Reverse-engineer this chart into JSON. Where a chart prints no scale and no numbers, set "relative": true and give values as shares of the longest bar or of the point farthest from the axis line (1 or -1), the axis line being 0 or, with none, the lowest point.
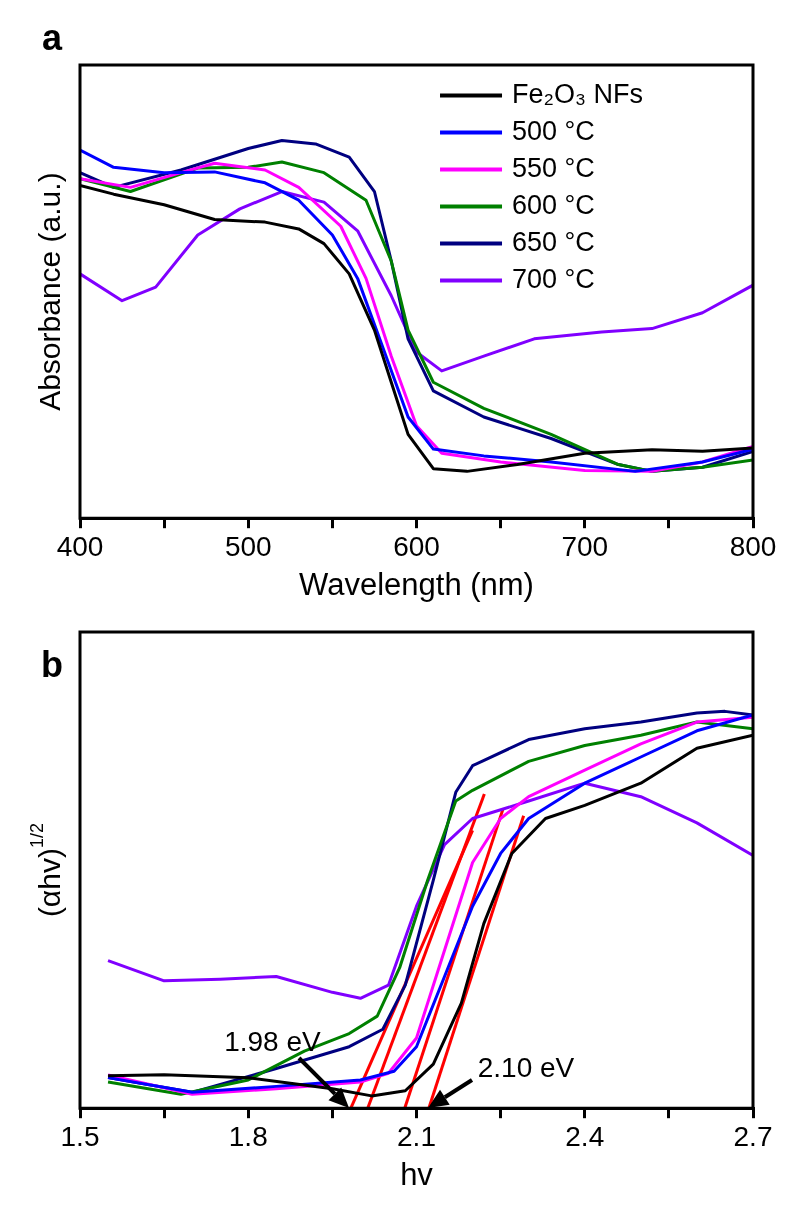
{
  "chart_data": [
    {
      "type": "line",
      "title": "a",
      "xlabel": "Wavelength (nm)",
      "ylabel": "Absorbance (a.u.)",
      "relative": true,
      "xlim": [
        400,
        800
      ],
      "xticks": [
        400,
        {
          "value": 450,
          "label": null
        },
        500,
        {
          "value": 550,
          "label": null
        },
        600,
        {
          "value": 650,
          "label": null
        },
        700,
        {
          "value": 750,
          "label": null
        },
        800
      ],
      "tick_labels": "x",
      "grid": false,
      "legend": "top right",
      "series": [
        {
          "name": "Fe₂O₃ NFs",
          "color": "#000000",
          "x": [
            400,
            420,
            450,
            480,
            510,
            530,
            545,
            560,
            575,
            585,
            595,
            610,
            630,
            660,
            700,
            740,
            770,
            800
          ],
          "values": [
            0.881,
            0.858,
            0.83,
            0.791,
            0.784,
            0.766,
            0.727,
            0.647,
            0.498,
            0.36,
            0.222,
            0.131,
            0.124,
            0.142,
            0.172,
            0.181,
            0.177,
            0.186
          ]
        },
        {
          "name": "500 °C",
          "color": "#0000ff",
          "x": [
            400,
            420,
            450,
            480,
            510,
            530,
            550,
            565,
            580,
            595,
            610,
            640,
            680,
            730,
            770,
            800
          ],
          "values": [
            0.975,
            0.929,
            0.915,
            0.917,
            0.888,
            0.842,
            0.75,
            0.635,
            0.452,
            0.268,
            0.183,
            0.165,
            0.149,
            0.124,
            0.149,
            0.183
          ]
        },
        {
          "name": "550 °C",
          "color": "#ff00ff",
          "x": [
            400,
            430,
            460,
            480,
            510,
            530,
            555,
            570,
            585,
            600,
            615,
            650,
            700,
            740,
            770,
            800
          ],
          "values": [
            0.899,
            0.876,
            0.915,
            0.94,
            0.922,
            0.876,
            0.773,
            0.635,
            0.429,
            0.245,
            0.172,
            0.149,
            0.126,
            0.124,
            0.149,
            0.19
          ]
        },
        {
          "name": "600 °C",
          "color": "#008000",
          "x": [
            400,
            430,
            470,
            500,
            520,
            545,
            570,
            585,
            595,
            610,
            640,
            680,
            720,
            740,
            770,
            800
          ],
          "values": [
            0.899,
            0.865,
            0.927,
            0.929,
            0.943,
            0.915,
            0.842,
            0.681,
            0.498,
            0.36,
            0.291,
            0.222,
            0.142,
            0.124,
            0.135,
            0.154
          ]
        },
        {
          "name": "650 °C",
          "color": "#000080",
          "x": [
            400,
            420,
            460,
            500,
            520,
            540,
            560,
            575,
            585,
            595,
            610,
            640,
            680,
            720,
            740,
            770,
            800
          ],
          "values": [
            0.915,
            0.876,
            0.922,
            0.979,
            1.0,
            0.991,
            0.956,
            0.865,
            0.681,
            0.475,
            0.337,
            0.268,
            0.211,
            0.142,
            0.124,
            0.135,
            0.177
          ]
        },
        {
          "name": "700 °C",
          "color": "#8000ff",
          "x": [
            400,
            425,
            445,
            470,
            495,
            520,
            545,
            565,
            585,
            600,
            615,
            640,
            670,
            710,
            740,
            770,
            800
          ],
          "values": [
            0.647,
            0.576,
            0.612,
            0.75,
            0.819,
            0.865,
            0.837,
            0.761,
            0.589,
            0.44,
            0.39,
            0.429,
            0.475,
            0.493,
            0.502,
            0.544,
            0.617
          ]
        }
      ]
    },
    {
      "type": "line",
      "title": "b",
      "xlabel": "hv",
      "ylabel": "(αhv)$^{1/2}$",
      "relative": true,
      "xlim": [
        1.5,
        2.7
      ],
      "xticks": [
        1.5,
        {
          "value": 1.65,
          "label": null
        },
        1.8,
        {
          "value": 1.95,
          "label": null
        },
        2.1,
        {
          "value": 2.25,
          "label": null
        },
        2.4,
        {
          "value": 2.55,
          "label": null
        },
        2.7
      ],
      "tick_labels": "x",
      "grid": false,
      "annotations": [
        {
          "text": "1.98 eV",
          "x": 1.98,
          "y": 0
        },
        {
          "text": "2.10 eV",
          "x": 2.12,
          "y": 0
        }
      ],
      "series": [
        {
          "color": "#000000",
          "x": [
            1.55,
            1.65,
            1.8,
            1.95,
            2.02,
            2.08,
            2.13,
            2.18,
            2.22,
            2.27,
            2.33,
            2.4,
            2.5,
            2.6,
            2.7
          ],
          "values": [
            0.082,
            0.084,
            0.077,
            0.049,
            0.031,
            0.044,
            0.111,
            0.265,
            0.465,
            0.642,
            0.73,
            0.763,
            0.819,
            0.907,
            0.94
          ]
        },
        {
          "color": "#0000ff",
          "x": [
            1.55,
            1.7,
            1.85,
            2.0,
            2.06,
            2.1,
            2.15,
            2.2,
            2.25,
            2.3,
            2.4,
            2.5,
            2.6,
            2.7
          ],
          "values": [
            0.077,
            0.04,
            0.055,
            0.071,
            0.093,
            0.155,
            0.332,
            0.509,
            0.642,
            0.73,
            0.819,
            0.885,
            0.951,
            0.991
          ]
        },
        {
          "color": "#ff00ff",
          "x": [
            1.55,
            1.7,
            1.85,
            2.0,
            2.05,
            2.1,
            2.15,
            2.2,
            2.25,
            2.3,
            2.4,
            2.5,
            2.6,
            2.7
          ],
          "values": [
            0.084,
            0.035,
            0.049,
            0.066,
            0.088,
            0.177,
            0.398,
            0.619,
            0.73,
            0.785,
            0.852,
            0.918,
            0.973,
            0.985
          ]
        },
        {
          "color": "#008000",
          "x": [
            1.55,
            1.68,
            1.8,
            1.9,
            1.98,
            2.03,
            2.07,
            2.12,
            2.17,
            2.2,
            2.3,
            2.4,
            2.5,
            2.6,
            2.7
          ],
          "values": [
            0.066,
            0.035,
            0.071,
            0.144,
            0.188,
            0.232,
            0.354,
            0.575,
            0.774,
            0.801,
            0.874,
            0.914,
            0.94,
            0.973,
            0.956
          ]
        },
        {
          "color": "#000080",
          "x": [
            1.55,
            1.7,
            1.85,
            1.98,
            2.04,
            2.08,
            2.13,
            2.17,
            2.2,
            2.3,
            2.4,
            2.5,
            2.6,
            2.65,
            2.7
          ],
          "values": [
            0.077,
            0.04,
            0.1,
            0.155,
            0.199,
            0.31,
            0.575,
            0.796,
            0.863,
            0.929,
            0.956,
            0.973,
            0.996,
            1.0,
            0.991
          ]
        },
        {
          "color": "#8000ff",
          "x": [
            1.55,
            1.65,
            1.75,
            1.85,
            1.95,
            2.0,
            2.05,
            2.1,
            2.15,
            2.2,
            2.3,
            2.4,
            2.5,
            2.6,
            2.7
          ],
          "values": [
            0.372,
            0.321,
            0.325,
            0.332,
            0.292,
            0.277,
            0.31,
            0.509,
            0.664,
            0.73,
            0.774,
            0.819,
            0.785,
            0.719,
            0.637
          ]
        },
        {
          "type": "line",
          "color": "#ff0000",
          "x": [
            1.983,
            2.2
          ],
          "values": [
            0,
            0.7
          ]
        },
        {
          "type": "line",
          "color": "#ff0000",
          "x": [
            2.013,
            2.221
          ],
          "values": [
            0,
            0.792
          ]
        },
        {
          "type": "line",
          "color": "#ff0000",
          "x": [
            2.079,
            2.254
          ],
          "values": [
            0,
            0.753
          ]
        },
        {
          "type": "line",
          "color": "#ff0000",
          "x": [
            2.122,
            2.291
          ],
          "values": [
            0,
            0.737
          ]
        }
      ]
    }
  ]
}
